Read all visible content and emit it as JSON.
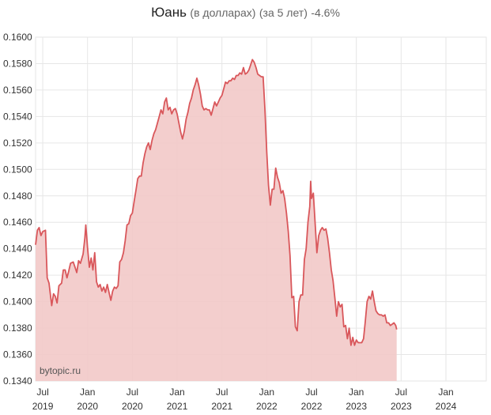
{
  "title": {
    "main": "Юань",
    "sub": "(в долларах)",
    "period": "(за 5 лет)",
    "change": "-4.6%"
  },
  "watermark": "bytopic.ru",
  "colors": {
    "line": "#d9575b",
    "fill": "#f2c9c8",
    "grid": "#e6e6e6",
    "axis_text": "#333333"
  },
  "chart_data": {
    "type": "area",
    "title": "Юань (в долларах) (за 5 лет) -4.6%",
    "xlabel": "",
    "ylabel": "",
    "ylim": [
      0.134,
      0.16
    ],
    "yticks": [
      "0.1600",
      "0.1580",
      "0.1560",
      "0.1540",
      "0.1520",
      "0.1500",
      "0.1480",
      "0.1460",
      "0.1440",
      "0.1420",
      "0.1400",
      "0.1380",
      "0.1360",
      "0.1340"
    ],
    "xticks": [
      {
        "month": "Jul",
        "year": "2019",
        "t": 2019.5
      },
      {
        "month": "Jan",
        "year": "2020",
        "t": 2020.0
      },
      {
        "month": "Jul",
        "year": "2020",
        "t": 2020.5
      },
      {
        "month": "Jan",
        "year": "2021",
        "t": 2021.0
      },
      {
        "month": "Jul",
        "year": "2021",
        "t": 2021.5
      },
      {
        "month": "Jan",
        "year": "2022",
        "t": 2022.0
      },
      {
        "month": "Jul",
        "year": "2022",
        "t": 2022.5
      },
      {
        "month": "Jan",
        "year": "2023",
        "t": 2023.0
      },
      {
        "month": "Jul",
        "year": "2023",
        "t": 2023.5
      },
      {
        "month": "Jan",
        "year": "2024",
        "t": 2024.0
      }
    ],
    "xlim": [
      2019.42,
      2024.45
    ],
    "grid": true,
    "series": [
      {
        "points": [
          [
            2019.42,
            0.1443
          ],
          [
            2019.44,
            0.1454
          ],
          [
            2019.46,
            0.1456
          ],
          [
            2019.48,
            0.145
          ],
          [
            2019.5,
            0.1453
          ],
          [
            2019.53,
            0.1454
          ],
          [
            2019.55,
            0.1418
          ],
          [
            2019.57,
            0.1414
          ],
          [
            2019.6,
            0.1397
          ],
          [
            2019.62,
            0.1406
          ],
          [
            2019.64,
            0.1404
          ],
          [
            2019.66,
            0.1399
          ],
          [
            2019.68,
            0.1412
          ],
          [
            2019.71,
            0.1414
          ],
          [
            2019.73,
            0.1424
          ],
          [
            2019.75,
            0.1424
          ],
          [
            2019.77,
            0.1418
          ],
          [
            2019.79,
            0.1423
          ],
          [
            2019.81,
            0.1429
          ],
          [
            2019.84,
            0.143
          ],
          [
            2019.86,
            0.1426
          ],
          [
            2019.88,
            0.1422
          ],
          [
            2019.9,
            0.1431
          ],
          [
            2019.92,
            0.1429
          ],
          [
            2019.95,
            0.1436
          ],
          [
            2019.97,
            0.1448
          ],
          [
            2019.98,
            0.1458
          ],
          [
            2020.0,
            0.1441
          ],
          [
            2020.02,
            0.1426
          ],
          [
            2020.04,
            0.1433
          ],
          [
            2020.06,
            0.1424
          ],
          [
            2020.08,
            0.1437
          ],
          [
            2020.1,
            0.1415
          ],
          [
            2020.12,
            0.1411
          ],
          [
            2020.14,
            0.1413
          ],
          [
            2020.16,
            0.1408
          ],
          [
            2020.18,
            0.1411
          ],
          [
            2020.2,
            0.1407
          ],
          [
            2020.22,
            0.1413
          ],
          [
            2020.24,
            0.1407
          ],
          [
            2020.26,
            0.1401
          ],
          [
            2020.28,
            0.1408
          ],
          [
            2020.3,
            0.1411
          ],
          [
            2020.32,
            0.141
          ],
          [
            2020.34,
            0.1412
          ],
          [
            2020.36,
            0.143
          ],
          [
            2020.38,
            0.1432
          ],
          [
            2020.4,
            0.1437
          ],
          [
            2020.42,
            0.1446
          ],
          [
            2020.44,
            0.1458
          ],
          [
            2020.46,
            0.1459
          ],
          [
            2020.48,
            0.1465
          ],
          [
            2020.5,
            0.1467
          ],
          [
            2020.52,
            0.1476
          ],
          [
            2020.54,
            0.1484
          ],
          [
            2020.56,
            0.1493
          ],
          [
            2020.58,
            0.1495
          ],
          [
            2020.6,
            0.1495
          ],
          [
            2020.62,
            0.1505
          ],
          [
            2020.64,
            0.1512
          ],
          [
            2020.66,
            0.1517
          ],
          [
            2020.68,
            0.152
          ],
          [
            2020.7,
            0.1515
          ],
          [
            2020.72,
            0.1522
          ],
          [
            2020.74,
            0.1527
          ],
          [
            2020.76,
            0.153
          ],
          [
            2020.78,
            0.1535
          ],
          [
            2020.8,
            0.154
          ],
          [
            2020.82,
            0.1545
          ],
          [
            2020.84,
            0.1542
          ],
          [
            2020.86,
            0.1551
          ],
          [
            2020.88,
            0.1554
          ],
          [
            2020.9,
            0.1545
          ],
          [
            2020.92,
            0.1547
          ],
          [
            2020.94,
            0.1542
          ],
          [
            2020.96,
            0.1545
          ],
          [
            2020.98,
            0.1546
          ],
          [
            2021.0,
            0.1542
          ],
          [
            2021.02,
            0.1535
          ],
          [
            2021.04,
            0.1528
          ],
          [
            2021.06,
            0.1523
          ],
          [
            2021.08,
            0.1529
          ],
          [
            2021.1,
            0.1538
          ],
          [
            2021.12,
            0.1543
          ],
          [
            2021.14,
            0.155
          ],
          [
            2021.16,
            0.1554
          ],
          [
            2021.18,
            0.156
          ],
          [
            2021.2,
            0.1564
          ],
          [
            2021.22,
            0.1569
          ],
          [
            2021.24,
            0.1564
          ],
          [
            2021.26,
            0.1557
          ],
          [
            2021.28,
            0.1548
          ],
          [
            2021.3,
            0.1545
          ],
          [
            2021.32,
            0.1546
          ],
          [
            2021.34,
            0.1545
          ],
          [
            2021.36,
            0.1545
          ],
          [
            2021.38,
            0.1541
          ],
          [
            2021.4,
            0.1546
          ],
          [
            2021.42,
            0.1551
          ],
          [
            2021.44,
            0.1548
          ],
          [
            2021.46,
            0.1551
          ],
          [
            2021.48,
            0.1554
          ],
          [
            2021.5,
            0.1556
          ],
          [
            2021.52,
            0.1561
          ],
          [
            2021.54,
            0.1566
          ],
          [
            2021.56,
            0.1565
          ],
          [
            2021.58,
            0.1567
          ],
          [
            2021.6,
            0.1567
          ],
          [
            2021.62,
            0.1569
          ],
          [
            2021.64,
            0.1568
          ],
          [
            2021.66,
            0.1571
          ],
          [
            2021.68,
            0.1571
          ],
          [
            2021.7,
            0.1573
          ],
          [
            2021.72,
            0.1572
          ],
          [
            2021.74,
            0.1577
          ],
          [
            2021.76,
            0.1572
          ],
          [
            2021.78,
            0.1573
          ],
          [
            2021.8,
            0.1575
          ],
          [
            2021.82,
            0.1579
          ],
          [
            2021.84,
            0.1583
          ],
          [
            2021.86,
            0.1581
          ],
          [
            2021.88,
            0.1577
          ],
          [
            2021.9,
            0.1572
          ],
          [
            2021.92,
            0.1571
          ],
          [
            2021.94,
            0.157
          ],
          [
            2021.96,
            0.157
          ],
          [
            2021.98,
            0.1545
          ],
          [
            2022.0,
            0.1513
          ],
          [
            2022.02,
            0.1488
          ],
          [
            2022.04,
            0.1473
          ],
          [
            2022.06,
            0.1485
          ],
          [
            2022.08,
            0.1485
          ],
          [
            2022.1,
            0.1501
          ],
          [
            2022.12,
            0.1494
          ],
          [
            2022.14,
            0.149
          ],
          [
            2022.16,
            0.1482
          ],
          [
            2022.18,
            0.1484
          ],
          [
            2022.2,
            0.1478
          ],
          [
            2022.22,
            0.1467
          ],
          [
            2022.24,
            0.1453
          ],
          [
            2022.26,
            0.1435
          ],
          [
            2022.28,
            0.1403
          ],
          [
            2022.3,
            0.1404
          ],
          [
            2022.32,
            0.1381
          ],
          [
            2022.34,
            0.1378
          ],
          [
            2022.36,
            0.14
          ],
          [
            2022.38,
            0.1405
          ],
          [
            2022.4,
            0.1405
          ],
          [
            2022.42,
            0.1432
          ],
          [
            2022.44,
            0.144
          ],
          [
            2022.46,
            0.146
          ],
          [
            2022.48,
            0.1472
          ],
          [
            2022.49,
            0.1491
          ],
          [
            2022.5,
            0.1478
          ],
          [
            2022.52,
            0.1482
          ],
          [
            2022.54,
            0.1459
          ],
          [
            2022.56,
            0.1437
          ],
          [
            2022.58,
            0.145
          ],
          [
            2022.6,
            0.1454
          ],
          [
            2022.62,
            0.1456
          ],
          [
            2022.64,
            0.1454
          ],
          [
            2022.66,
            0.1455
          ],
          [
            2022.68,
            0.1448
          ],
          [
            2022.7,
            0.1437
          ],
          [
            2022.72,
            0.1424
          ],
          [
            2022.74,
            0.1416
          ],
          [
            2022.76,
            0.1403
          ],
          [
            2022.78,
            0.1389
          ],
          [
            2022.8,
            0.14
          ],
          [
            2022.82,
            0.1396
          ],
          [
            2022.84,
            0.1398
          ],
          [
            2022.86,
            0.1381
          ],
          [
            2022.88,
            0.1382
          ],
          [
            2022.9,
            0.1372
          ],
          [
            2022.92,
            0.138
          ],
          [
            2022.94,
            0.1367
          ],
          [
            2022.96,
            0.1373
          ],
          [
            2022.98,
            0.1367
          ],
          [
            2023.0,
            0.1371
          ],
          [
            2023.02,
            0.1369
          ],
          [
            2023.04,
            0.1369
          ],
          [
            2023.06,
            0.1369
          ],
          [
            2023.08,
            0.1372
          ],
          [
            2023.1,
            0.1385
          ],
          [
            2023.12,
            0.14
          ],
          [
            2023.14,
            0.1404
          ],
          [
            2023.16,
            0.1402
          ],
          [
            2023.18,
            0.1408
          ],
          [
            2023.2,
            0.14
          ],
          [
            2023.22,
            0.1393
          ],
          [
            2023.24,
            0.1391
          ],
          [
            2023.26,
            0.139
          ],
          [
            2023.28,
            0.139
          ],
          [
            2023.3,
            0.1389
          ],
          [
            2023.32,
            0.139
          ],
          [
            2023.34,
            0.1384
          ],
          [
            2023.36,
            0.1384
          ],
          [
            2023.38,
            0.1382
          ],
          [
            2023.4,
            0.1383
          ],
          [
            2023.42,
            0.1384
          ],
          [
            2023.44,
            0.1382
          ],
          [
            2023.45,
            0.1379
          ]
        ]
      }
    ]
  }
}
